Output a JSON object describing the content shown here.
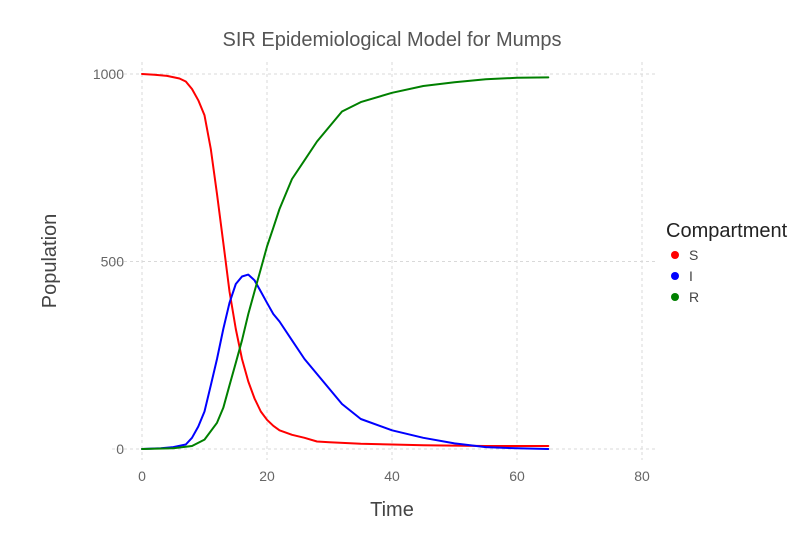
{
  "chart_data": {
    "type": "line",
    "title": "SIR Epidemiological Model for Mumps",
    "xlabel": "Time",
    "ylabel": "Population",
    "xlim": [
      0,
      80
    ],
    "ylim": [
      0,
      1000
    ],
    "xticks": [
      0,
      20,
      40,
      60,
      80
    ],
    "yticks": [
      0,
      500,
      1000
    ],
    "grid": true,
    "legend": {
      "title": "Compartment",
      "position": "right",
      "entries": [
        "S",
        "I",
        "R"
      ]
    },
    "series": [
      {
        "name": "S",
        "color": "#ff0000",
        "x": [
          0,
          2,
          4,
          6,
          7,
          8,
          9,
          10,
          11,
          12,
          13,
          14,
          15,
          16,
          17,
          18,
          19,
          20,
          21,
          22,
          24,
          26,
          28,
          30,
          35,
          40,
          45,
          50,
          55,
          60,
          65
        ],
        "y": [
          1000,
          998,
          995,
          988,
          980,
          960,
          930,
          890,
          800,
          680,
          550,
          420,
          320,
          240,
          180,
          135,
          100,
          78,
          62,
          50,
          38,
          30,
          20,
          18,
          14,
          12,
          10,
          9,
          8,
          8,
          8
        ]
      },
      {
        "name": "I",
        "color": "#0000ff",
        "x": [
          0,
          3,
          5,
          7,
          8,
          9,
          10,
          11,
          12,
          13,
          14,
          15,
          16,
          17,
          18,
          19,
          20,
          21,
          22,
          24,
          26,
          28,
          30,
          32,
          35,
          40,
          45,
          50,
          55,
          60,
          65
        ],
        "y": [
          0,
          2,
          5,
          12,
          30,
          60,
          100,
          170,
          240,
          320,
          390,
          440,
          460,
          465,
          450,
          420,
          390,
          360,
          340,
          290,
          240,
          200,
          160,
          120,
          80,
          50,
          30,
          15,
          5,
          2,
          0
        ]
      },
      {
        "name": "R",
        "color": "#008000",
        "x": [
          0,
          5,
          8,
          10,
          12,
          13,
          14,
          15,
          16,
          17,
          18,
          19,
          20,
          21,
          22,
          24,
          26,
          28,
          30,
          32,
          35,
          40,
          45,
          50,
          55,
          60,
          65
        ],
        "y": [
          0,
          2,
          8,
          25,
          70,
          110,
          170,
          230,
          290,
          360,
          420,
          480,
          540,
          590,
          640,
          720,
          770,
          820,
          860,
          900,
          925,
          950,
          968,
          978,
          986,
          990,
          991
        ]
      }
    ]
  }
}
